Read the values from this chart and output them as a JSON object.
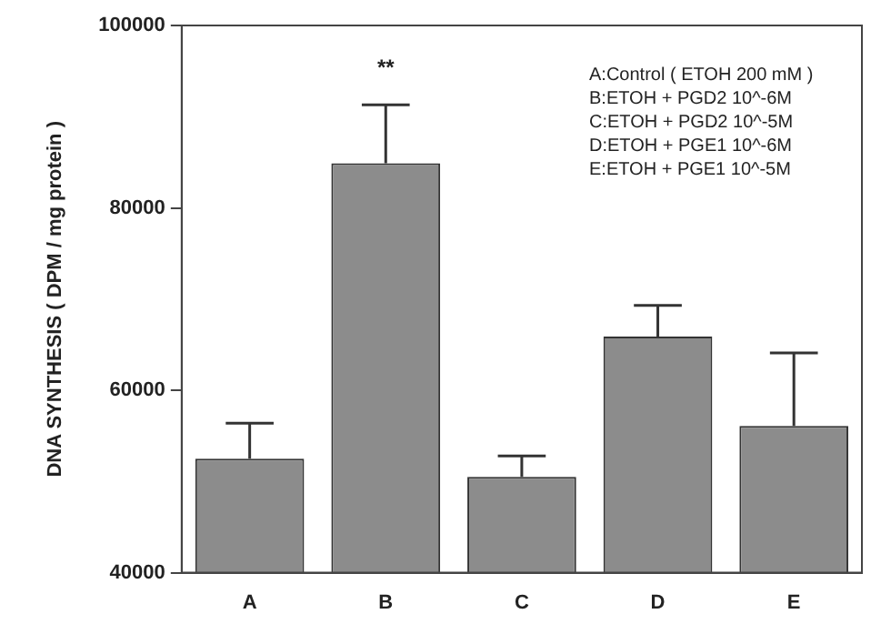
{
  "chart_data": {
    "type": "bar",
    "ylabel": "DNA SYNTHESIS ( DPM / mg protein )",
    "categories": [
      "A",
      "B",
      "C",
      "D",
      "E"
    ],
    "values": [
      52500,
      84900,
      50500,
      65900,
      56100
    ],
    "errors": [
      [
        52500,
        56400
      ],
      [
        84900,
        91300
      ],
      [
        50500,
        52800
      ],
      [
        65900,
        69300
      ],
      [
        56100,
        64100
      ]
    ],
    "color": "#8c8c8c",
    "ylim": [
      40000,
      100000
    ],
    "yticks": [
      40000,
      60000,
      80000,
      100000
    ],
    "grid": false,
    "legend": false,
    "annotations": [
      "**",
      "A:Control ( ETOH 200 mM )",
      "B:ETOH + PGD2 10^-6M",
      "C:ETOH + PGD2 10^-5M",
      "D:ETOH + PGE1 10^-6M",
      "E:ETOH + PGE1 10^-5M"
    ]
  }
}
